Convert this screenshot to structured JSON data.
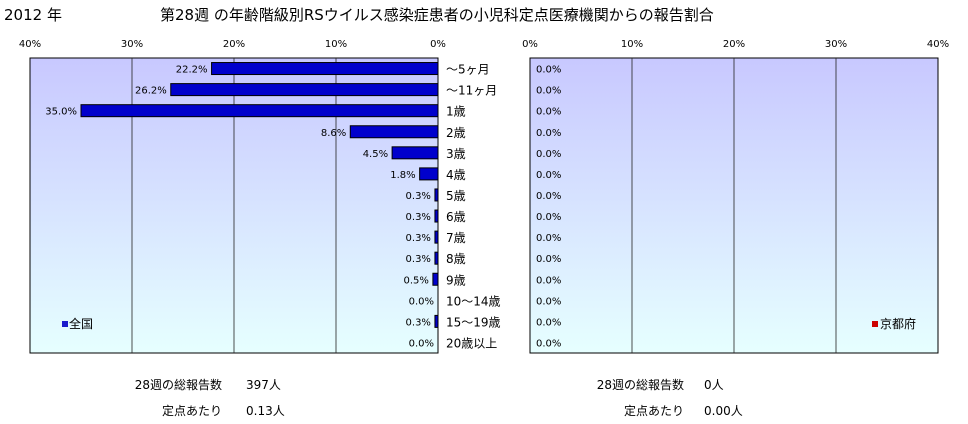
{
  "header": {
    "year": "2012 年",
    "title": "第28週 の年齢階級別RSウイルス感染症患者の小児科定点医療機関からの報告割合"
  },
  "colors": {
    "plot_top": "#c8c8ff",
    "plot_bottom": "#e6ffff",
    "bar_fill": "#0000cc",
    "bar_stroke": "#000000",
    "grid": "#222222",
    "legend_national": "#1a1acc",
    "legend_kyoto": "#cc0000"
  },
  "chart_data": [
    {
      "type": "bar",
      "orientation": "horizontal",
      "direction": "right-to-left",
      "region": "全国",
      "categories": [
        "～5ヶ月",
        "～11ヶ月",
        "1歳",
        "2歳",
        "3歳",
        "4歳",
        "5歳",
        "6歳",
        "7歳",
        "8歳",
        "9歳",
        "10～14歳",
        "15～19歳",
        "20歳以上"
      ],
      "values": [
        22.2,
        26.2,
        35.0,
        8.6,
        4.5,
        1.8,
        0.3,
        0.3,
        0.3,
        0.3,
        0.5,
        0.0,
        0.3,
        0.0
      ],
      "value_labels": [
        "22.2%",
        "26.2%",
        "35.0%",
        "8.6%",
        "4.5%",
        "1.8%",
        "0.3%",
        "0.3%",
        "0.3%",
        "0.3%",
        "0.5%",
        "0.0%",
        "0.3%",
        "0.0%"
      ],
      "xlim": [
        0,
        40
      ],
      "ticks": [
        "40%",
        "30%",
        "20%",
        "10%",
        "0%"
      ],
      "grid": true,
      "legend": "全国",
      "legend_position": "bottom-left"
    },
    {
      "type": "bar",
      "orientation": "horizontal",
      "direction": "left-to-right",
      "region": "京都府",
      "categories": [
        "～5ヶ月",
        "～11ヶ月",
        "1歳",
        "2歳",
        "3歳",
        "4歳",
        "5歳",
        "6歳",
        "7歳",
        "8歳",
        "9歳",
        "10～14歳",
        "15～19歳",
        "20歳以上"
      ],
      "values": [
        0.0,
        0.0,
        0.0,
        0.0,
        0.0,
        0.0,
        0.0,
        0.0,
        0.0,
        0.0,
        0.0,
        0.0,
        0.0,
        0.0
      ],
      "value_labels": [
        "0.0%",
        "0.0%",
        "0.0%",
        "0.0%",
        "0.0%",
        "0.0%",
        "0.0%",
        "0.0%",
        "0.0%",
        "0.0%",
        "0.0%",
        "0.0%",
        "0.0%",
        "0.0%"
      ],
      "xlim": [
        0,
        40
      ],
      "ticks": [
        "0%",
        "10%",
        "20%",
        "30%",
        "40%"
      ],
      "grid": true,
      "legend": "京都府",
      "legend_position": "bottom-right"
    }
  ],
  "footer": {
    "left": {
      "total_label": "28週の総報告数",
      "total_value": "397人",
      "per_label": "定点あたり",
      "per_value": "0.13人"
    },
    "right": {
      "total_label": "28週の総報告数",
      "total_value": "0人",
      "per_label": "定点あたり",
      "per_value": "0.00人"
    }
  }
}
